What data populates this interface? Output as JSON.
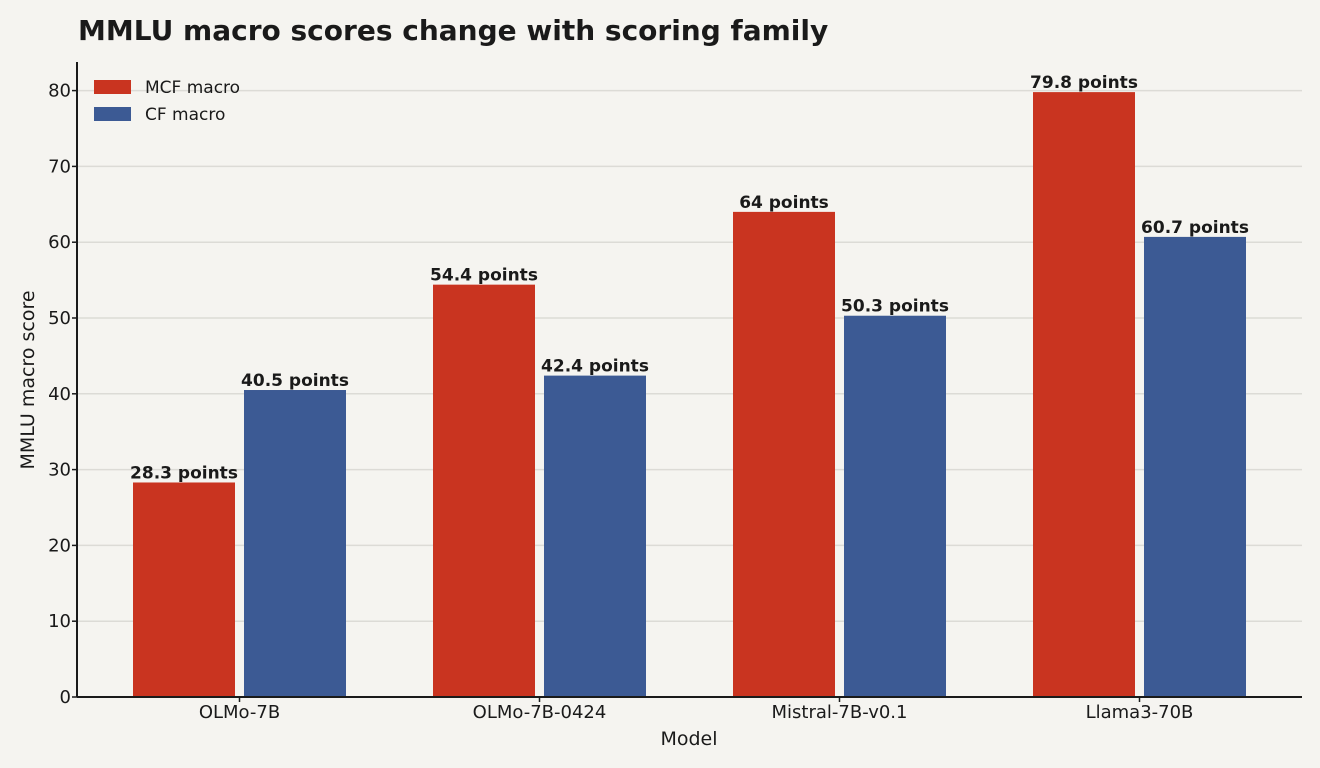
{
  "chart_data": {
    "type": "bar",
    "title": "MMLU macro scores change with scoring family",
    "xlabel": "Model",
    "ylabel": "MMLU macro score",
    "categories": [
      "OLMo-7B",
      "OLMo-7B-0424",
      "Mistral-7B-v0.1",
      "Llama3-70B"
    ],
    "series": [
      {
        "name": "MCF macro",
        "color": "#c93420",
        "values": [
          28.3,
          54.4,
          64,
          79.8
        ],
        "labels": [
          "28.3 points",
          "54.4 points",
          "64 points",
          "79.8 points"
        ]
      },
      {
        "name": "CF macro",
        "color": "#3c5a94",
        "values": [
          40.5,
          42.4,
          50.3,
          60.7
        ],
        "labels": [
          "40.5 points",
          "42.4 points",
          "50.3 points",
          "60.7 points"
        ]
      }
    ],
    "ylim": [
      0,
      84
    ],
    "yticks": [
      0,
      10,
      20,
      30,
      40,
      50,
      60,
      70,
      80
    ],
    "grid": true,
    "legend_position": "top-left"
  }
}
